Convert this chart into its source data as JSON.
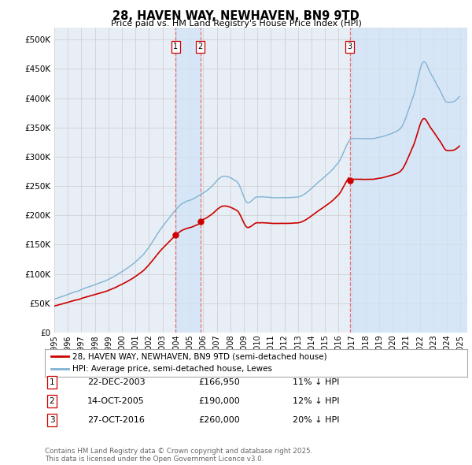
{
  "title": "28, HAVEN WAY, NEWHAVEN, BN9 9TD",
  "subtitle": "Price paid vs. HM Land Registry's House Price Index (HPI)",
  "xlim_start": 1995.0,
  "xlim_end": 2025.5,
  "ylim": [
    0,
    520000
  ],
  "yticks": [
    0,
    50000,
    100000,
    150000,
    200000,
    250000,
    300000,
    350000,
    400000,
    450000,
    500000
  ],
  "ytick_labels": [
    "£0",
    "£50K",
    "£100K",
    "£150K",
    "£200K",
    "£250K",
    "£300K",
    "£350K",
    "£400K",
    "£450K",
    "£500K"
  ],
  "grid_color": "#cccccc",
  "bg_color": "#ffffff",
  "plot_bg_color": "#e8eef5",
  "hpi_color": "#7fb3d3",
  "price_color": "#cc0000",
  "vline_color": "#e87070",
  "shade_color": "#d0e4f7",
  "legend_label_price": "28, HAVEN WAY, NEWHAVEN, BN9 9TD (semi-detached house)",
  "legend_label_hpi": "HPI: Average price, semi-detached house, Lewes",
  "sales": [
    {
      "num": 1,
      "date_dec": 2003.97,
      "price": 166950,
      "label": "1",
      "text": "22-DEC-2003",
      "amount": "£166,950",
      "pct": "11% ↓ HPI"
    },
    {
      "num": 2,
      "date_dec": 2005.79,
      "price": 190000,
      "label": "2",
      "text": "14-OCT-2005",
      "amount": "£190,000",
      "pct": "12% ↓ HPI"
    },
    {
      "num": 3,
      "date_dec": 2016.83,
      "price": 260000,
      "label": "3",
      "text": "27-OCT-2016",
      "amount": "£260,000",
      "pct": "20% ↓ HPI"
    }
  ],
  "footnote": "Contains HM Land Registry data © Crown copyright and database right 2025.\nThis data is licensed under the Open Government Licence v3.0."
}
